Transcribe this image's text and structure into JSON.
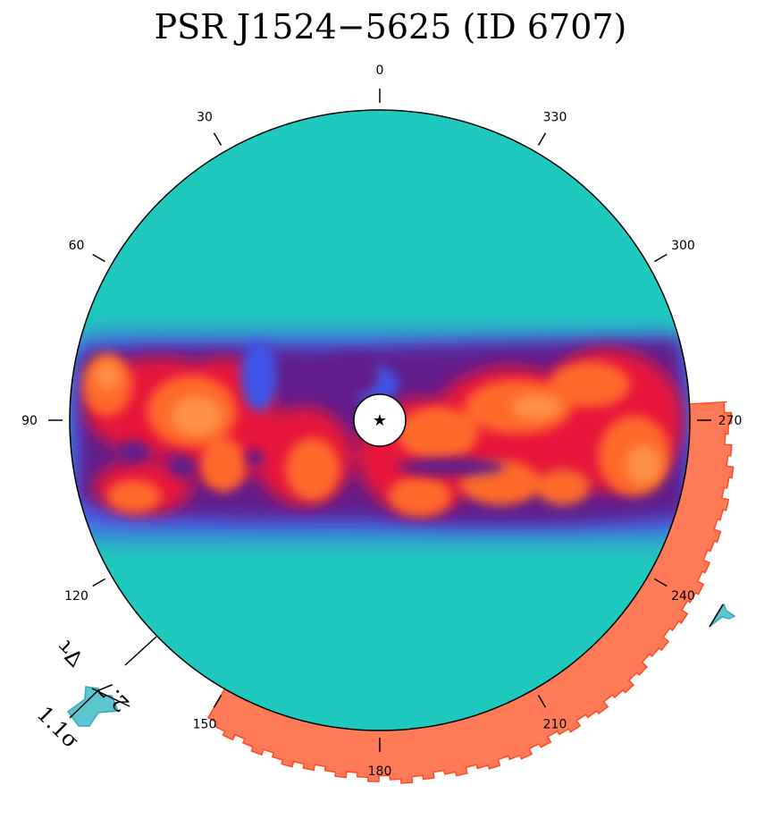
{
  "chart_data": {
    "type": "polar-sky-map",
    "title": "PSR J1524−5625 (ID 6707)",
    "center_marker": "★",
    "angle_ticks": [
      0,
      30,
      60,
      90,
      120,
      150,
      180,
      210,
      240,
      270,
      300,
      330
    ],
    "angle_direction": "counter-clockwise from top",
    "colors": {
      "background_disc": "#20c9bd",
      "band_edge": "#5e1d8a",
      "band_mid": "#e8193a",
      "band_hot": "#ff6a2b",
      "band_peak": "#ff9a4f",
      "outer_histogram": "#ff7a56",
      "outer_histogram_edge": "#ff4a22",
      "marker_fill": "#5bc6cf",
      "marker_edge": "#3aa9b5"
    },
    "outer_histogram": {
      "angle_range": [
        150,
        273
      ],
      "description": "radial histogram outside disc"
    },
    "annotations": [
      {
        "label": "∇τ",
        "value": "2.7",
        "angle": 140
      },
      {
        "label": "σ",
        "value": "1.1",
        "angle": 140
      }
    ]
  }
}
